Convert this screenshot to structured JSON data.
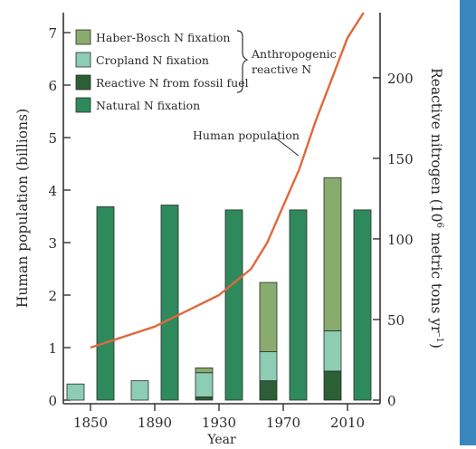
{
  "chart_data": {
    "type": "bar",
    "x_label": "Year",
    "y_left_label": "Human population (billions)",
    "y_right_label_prefix": "Reactive nitrogen (10",
    "y_right_label_sup": "6",
    "y_right_label_suffix": " metric tons yr",
    "y_right_label_sup2": "–1",
    "y_right_label_close": ")",
    "categories": [
      "1850",
      "1890",
      "1930",
      "1970",
      "2010"
    ],
    "left_axis": {
      "min": 0,
      "max": 7,
      "ticks": [
        0,
        1,
        2,
        3,
        4,
        5,
        6,
        7
      ]
    },
    "right_axis": {
      "min": 0,
      "max": 228,
      "ticks": [
        0,
        50,
        100,
        150,
        200
      ]
    },
    "stacks": [
      {
        "name": "Haber-Bosch N fixation",
        "color": "#8aab6e"
      },
      {
        "name": "Cropland N fixation",
        "color": "#8ccdb4"
      },
      {
        "name": "Reactive N from fossil fuel",
        "color": "#2c5f36"
      }
    ],
    "anthropogenic": {
      "fossil_fuel": [
        0,
        0,
        2,
        12,
        18
      ],
      "cropland": [
        10,
        12,
        15,
        18,
        25
      ],
      "haber_bosch": [
        0,
        0,
        3,
        43,
        95
      ]
    },
    "natural": {
      "name": "Natural N fixation",
      "color": "#2e8a5c",
      "values": [
        120,
        121,
        118,
        118,
        118
      ]
    },
    "bracket_label_line1": "Anthropogenic",
    "bracket_label_line2": "reactive N",
    "population_label": "Human population",
    "population_color": "#e0683c",
    "population": {
      "x": [
        1850,
        1870,
        1890,
        1910,
        1930,
        1950,
        1960,
        1970,
        1980,
        1990,
        2000,
        2010,
        2020
      ],
      "y": [
        1.0,
        1.2,
        1.4,
        1.7,
        2.0,
        2.5,
        3.0,
        3.7,
        4.4,
        5.3,
        6.1,
        6.9,
        7.9
      ]
    }
  }
}
